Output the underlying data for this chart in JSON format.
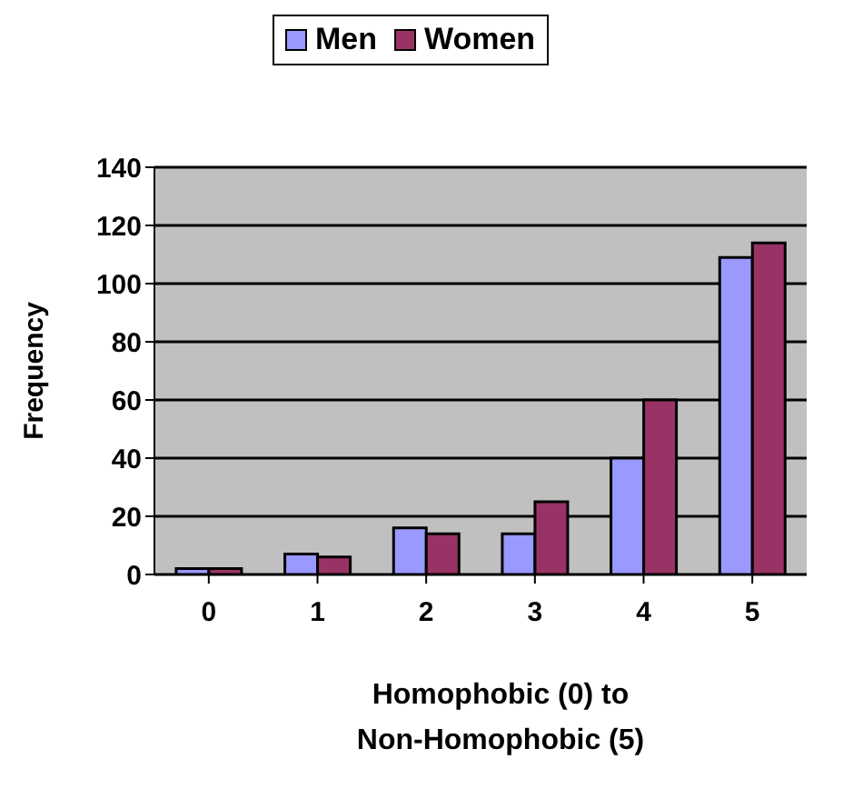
{
  "chart_data": {
    "type": "bar",
    "xlabel": "Homophobic (0) to\nNon-Homophobic (5)",
    "ylabel": "Frequency",
    "categories": [
      "0",
      "1",
      "2",
      "3",
      "4",
      "5"
    ],
    "series": [
      {
        "name": "Men",
        "color": "#9999ff",
        "values": [
          2,
          7,
          16,
          14,
          40,
          109
        ]
      },
      {
        "name": "Women",
        "color": "#993366",
        "values": [
          2,
          6,
          14,
          25,
          60,
          114
        ]
      }
    ],
    "ylim": [
      0,
      140
    ],
    "yticks": [
      0,
      20,
      40,
      60,
      80,
      100,
      120,
      140
    ],
    "grid": "y",
    "legend": "top"
  }
}
